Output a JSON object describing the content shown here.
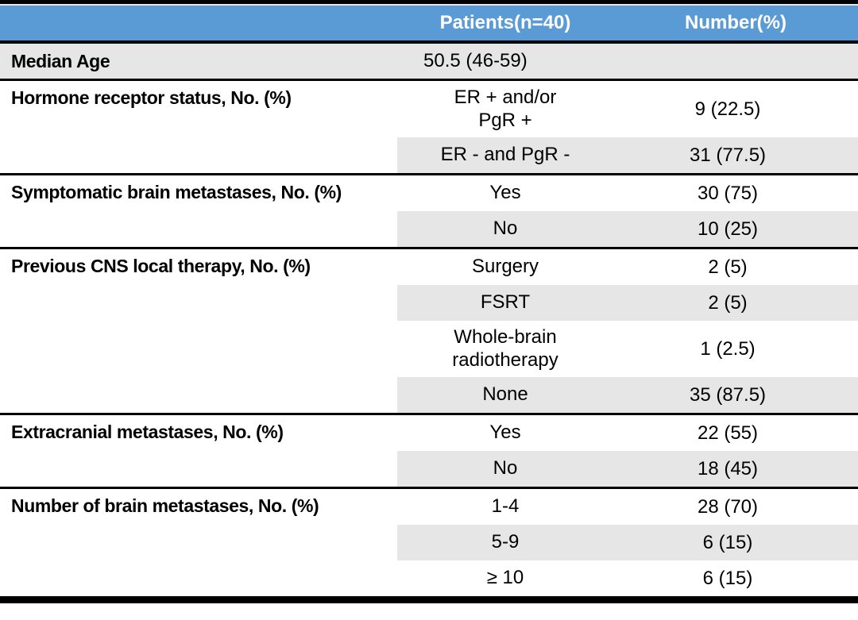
{
  "table": {
    "header": {
      "patients_col": "Patients(n=40)",
      "number_col": "Number(%)"
    },
    "colors": {
      "header_bg": "#5b9bd5",
      "header_text": "#ffffff",
      "row_shade": "#e7e6e6",
      "border": "#000000"
    },
    "sections": [
      {
        "label": "Median Age",
        "rows": [
          {
            "patients": "50.5 (46-59)",
            "number": ""
          }
        ]
      },
      {
        "label": "Hormone receptor status, No. (%)",
        "rows": [
          {
            "patients": "ER + and/or\nPgR +",
            "number": "9 (22.5)"
          },
          {
            "patients": "ER - and PgR -",
            "number": "31 (77.5)"
          }
        ]
      },
      {
        "label": "Symptomatic brain metastases, No. (%)",
        "rows": [
          {
            "patients": "Yes",
            "number": "30 (75)"
          },
          {
            "patients": "No",
            "number": "10 (25)"
          }
        ]
      },
      {
        "label": "Previous CNS local therapy, No. (%)",
        "rows": [
          {
            "patients": "Surgery",
            "number": "2 (5)"
          },
          {
            "patients": "FSRT",
            "number": "2 (5)"
          },
          {
            "patients": "Whole-brain\nradiotherapy",
            "number": "1 (2.5)"
          },
          {
            "patients": "None",
            "number": "35 (87.5)"
          }
        ]
      },
      {
        "label": "Extracranial metastases, No. (%)",
        "rows": [
          {
            "patients": "Yes",
            "number": "22 (55)"
          },
          {
            "patients": "No",
            "number": "18 (45)"
          }
        ]
      },
      {
        "label": "Number of brain metastases, No. (%)",
        "rows": [
          {
            "patients": "1-4",
            "number": "28 (70)"
          },
          {
            "patients": "5-9",
            "number": "6 (15)"
          },
          {
            "patients": "≥ 10",
            "number": "6 (15)"
          }
        ]
      }
    ]
  }
}
